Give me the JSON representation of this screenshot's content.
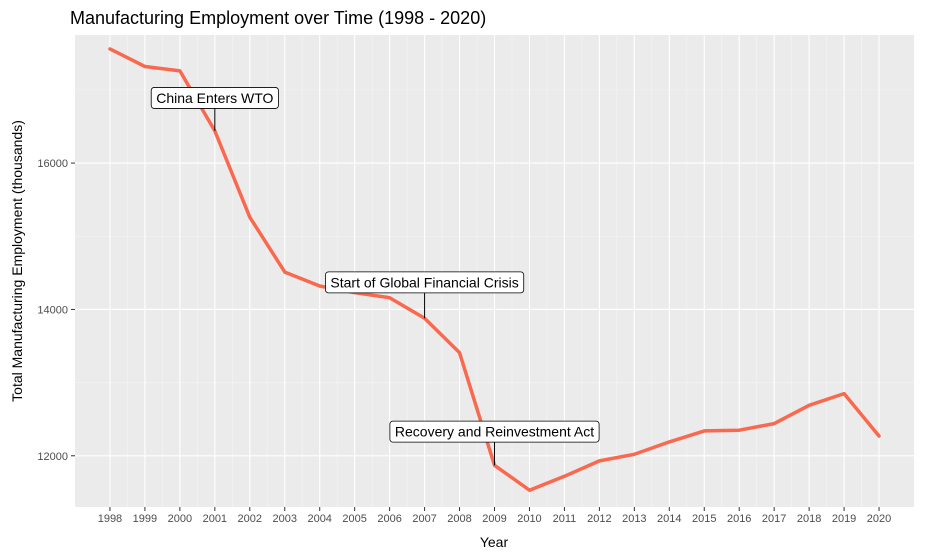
{
  "chart_data": {
    "type": "line",
    "title": "Manufacturing Employment over Time (1998 - 2020)",
    "xlabel": "Year",
    "ylabel": "Total Manufacturing Employment (thousands)",
    "x": [
      1998,
      1999,
      2000,
      2001,
      2002,
      2003,
      2004,
      2005,
      2006,
      2007,
      2008,
      2009,
      2010,
      2011,
      2012,
      2013,
      2014,
      2015,
      2016,
      2017,
      2018,
      2019,
      2020
    ],
    "x_tick_labels": [
      "1998",
      "1999",
      "2000",
      "2001",
      "2002",
      "2003",
      "2004",
      "2005",
      "2006",
      "2007",
      "2008",
      "2009",
      "2010",
      "2011",
      "2012",
      "2013",
      "2014",
      "2015",
      "2016",
      "2017",
      "2018",
      "2019",
      "2020"
    ],
    "series": [
      {
        "values": [
          17560,
          17320,
          17260,
          16440,
          15260,
          14510,
          14320,
          14230,
          14160,
          13880,
          13410,
          11870,
          11530,
          11720,
          11930,
          12020,
          12190,
          12340,
          12350,
          12440,
          12690,
          12850,
          12270
        ],
        "color": "#F8694F"
      }
    ],
    "xlim": [
      1997,
      2021
    ],
    "ylim": [
      11300,
      17750
    ],
    "y_ticks": [
      12000,
      14000,
      16000
    ],
    "y_tick_labels": [
      "12000",
      "14000",
      "16000"
    ],
    "grid": true,
    "panel_background": "#EBEBEB",
    "annotations": [
      {
        "text": "China Enters WTO",
        "x": 2001,
        "y": 16440,
        "label_y": 16890
      },
      {
        "text": "Start of Global Financial Crisis",
        "x": 2007,
        "y": 13880,
        "label_y": 14370
      },
      {
        "text": "Recovery and Reinvestment Act",
        "x": 2009,
        "y": 11870,
        "label_y": 12330
      }
    ]
  }
}
